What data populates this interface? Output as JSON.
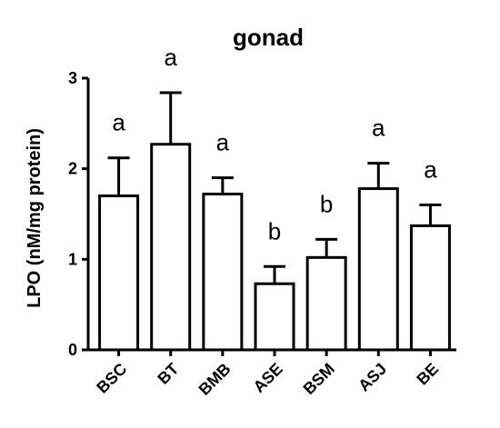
{
  "chart_data": {
    "type": "bar",
    "title": "gonad",
    "xlabel": "",
    "ylabel": "LPO (nM/mg protein)",
    "ylim": [
      0,
      3
    ],
    "yticks": [
      "0",
      "1",
      "2",
      "3"
    ],
    "grid": false,
    "categories": [
      "BSC",
      "BT",
      "BMB",
      "ASE",
      "BSM",
      "ASJ",
      "BE"
    ],
    "values": [
      1.7,
      2.27,
      1.72,
      0.73,
      1.02,
      1.78,
      1.37
    ],
    "errors": [
      0.42,
      0.57,
      0.18,
      0.19,
      0.2,
      0.28,
      0.23
    ],
    "significance": [
      "a",
      "a",
      "a",
      "b",
      "b",
      "a",
      "a"
    ],
    "bar_fill": "#ffffff",
    "bar_stroke": "#000000"
  }
}
